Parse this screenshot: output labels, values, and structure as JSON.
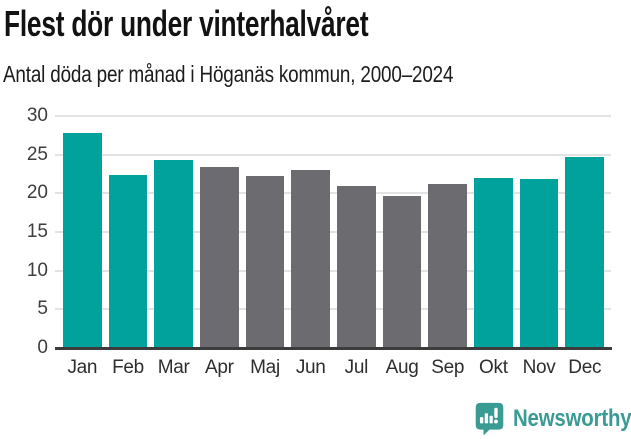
{
  "chart_data": {
    "type": "bar",
    "title": "Flest dör under vinterhalvåret",
    "subtitle": "Antal döda per månad i Höganäs kommun, 2000–2024",
    "categories": [
      "Jan",
      "Feb",
      "Mar",
      "Apr",
      "Maj",
      "Jun",
      "Jul",
      "Aug",
      "Sep",
      "Okt",
      "Nov",
      "Dec"
    ],
    "values": [
      27.8,
      22.4,
      24.3,
      23.4,
      22.2,
      23.0,
      20.9,
      19.6,
      21.2,
      22.0,
      21.9,
      24.7
    ],
    "highlighted_categories": [
      "Jan",
      "Feb",
      "Mar",
      "Okt",
      "Nov",
      "Dec"
    ],
    "highlight_color": "#00a29b",
    "base_color": "#6c6c70",
    "xlabel": "",
    "ylabel": "",
    "ylim": [
      0,
      30
    ],
    "yticks": [
      0,
      5,
      10,
      15,
      20,
      25,
      30
    ],
    "grid": true,
    "gridline_color": "#e3e3e3",
    "axis_color": "#3c3c3c",
    "legend": "none"
  },
  "branding": {
    "logo_text": "Newsworthy",
    "logo_color": "#3a9a94",
    "logo_icon": "bar-chart-speech-bubble-icon"
  }
}
